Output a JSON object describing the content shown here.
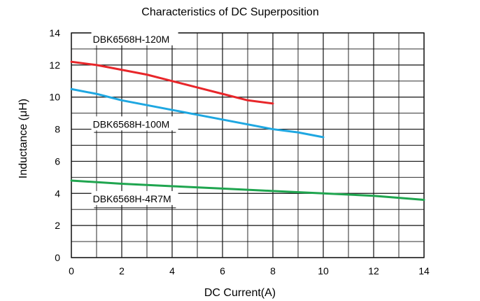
{
  "chart_data": {
    "type": "line",
    "title": "Characteristics of DC Superposition",
    "xlabel": "DC Current(A)",
    "ylabel": "Inductance (μH)",
    "xlim": [
      0,
      14
    ],
    "ylim": [
      0,
      14
    ],
    "x_ticks": [
      0,
      2,
      4,
      6,
      8,
      10,
      12,
      14
    ],
    "y_ticks": [
      0,
      2,
      4,
      6,
      8,
      10,
      12,
      14
    ],
    "x_tick_labels": [
      "0",
      "2",
      "4",
      "6",
      "8",
      "10",
      "12",
      "14"
    ],
    "y_tick_labels": [
      "0",
      "2",
      "4",
      "6",
      "8",
      "10",
      "12",
      "14"
    ],
    "grid": true,
    "legend": "none",
    "series": [
      {
        "name": "DBK6568H-120M",
        "color": "#e8262a",
        "x": [
          0,
          1,
          2,
          3,
          4,
          5,
          6,
          7,
          8
        ],
        "values": [
          12.2,
          12.0,
          11.7,
          11.4,
          11.0,
          10.6,
          10.2,
          9.8,
          9.6
        ]
      },
      {
        "name": "DBK6568H-100M",
        "color": "#1ea7e1",
        "x": [
          0,
          1,
          2,
          3,
          4,
          5,
          6,
          7,
          8,
          9,
          10
        ],
        "values": [
          10.5,
          10.2,
          9.8,
          9.5,
          9.2,
          8.9,
          8.6,
          8.3,
          8.0,
          7.8,
          7.5
        ]
      },
      {
        "name": "DBK6568H-4R7M",
        "color": "#1fa54f",
        "x": [
          0,
          2,
          4,
          6,
          8,
          10,
          12,
          14
        ],
        "values": [
          4.8,
          4.6,
          4.45,
          4.3,
          4.15,
          4.0,
          3.85,
          3.6
        ]
      }
    ]
  }
}
